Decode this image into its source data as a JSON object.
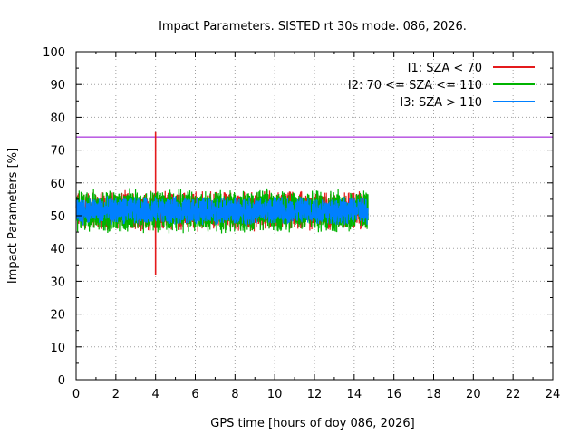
{
  "chart_data": {
    "type": "line",
    "title": "Impact Parameters. SISTED rt 30s mode. 086, 2026.",
    "xlabel": "GPS time [hours of doy 086, 2026]",
    "ylabel": "Impact Parameters [%]",
    "xlim": [
      0,
      24
    ],
    "ylim": [
      0,
      100
    ],
    "xticks": [
      0,
      2,
      4,
      6,
      8,
      10,
      12,
      14,
      16,
      18,
      20,
      22,
      24
    ],
    "yticks": [
      0,
      10,
      20,
      30,
      40,
      50,
      60,
      70,
      80,
      90,
      100
    ],
    "grid": true,
    "legend_position": "top-right",
    "reference_line": {
      "y": 74,
      "color": "#9400d3"
    },
    "data_end_hour": 14.7,
    "series": [
      {
        "name": "I1: SZA < 70",
        "color": "#e41a1c",
        "mean": 51.5,
        "spread": 5,
        "spikes": [
          {
            "x": 4.0,
            "y": 75.5
          },
          {
            "x": 4.0,
            "y": 32.0
          }
        ]
      },
      {
        "name": "I2: 70 <= SZA <= 110",
        "color": "#00b300",
        "mean": 51.5,
        "spread": 5.5
      },
      {
        "name": "I3: SZA > 110",
        "color": "#0080ff",
        "mean": 51.5,
        "spread": 3.5
      }
    ]
  }
}
